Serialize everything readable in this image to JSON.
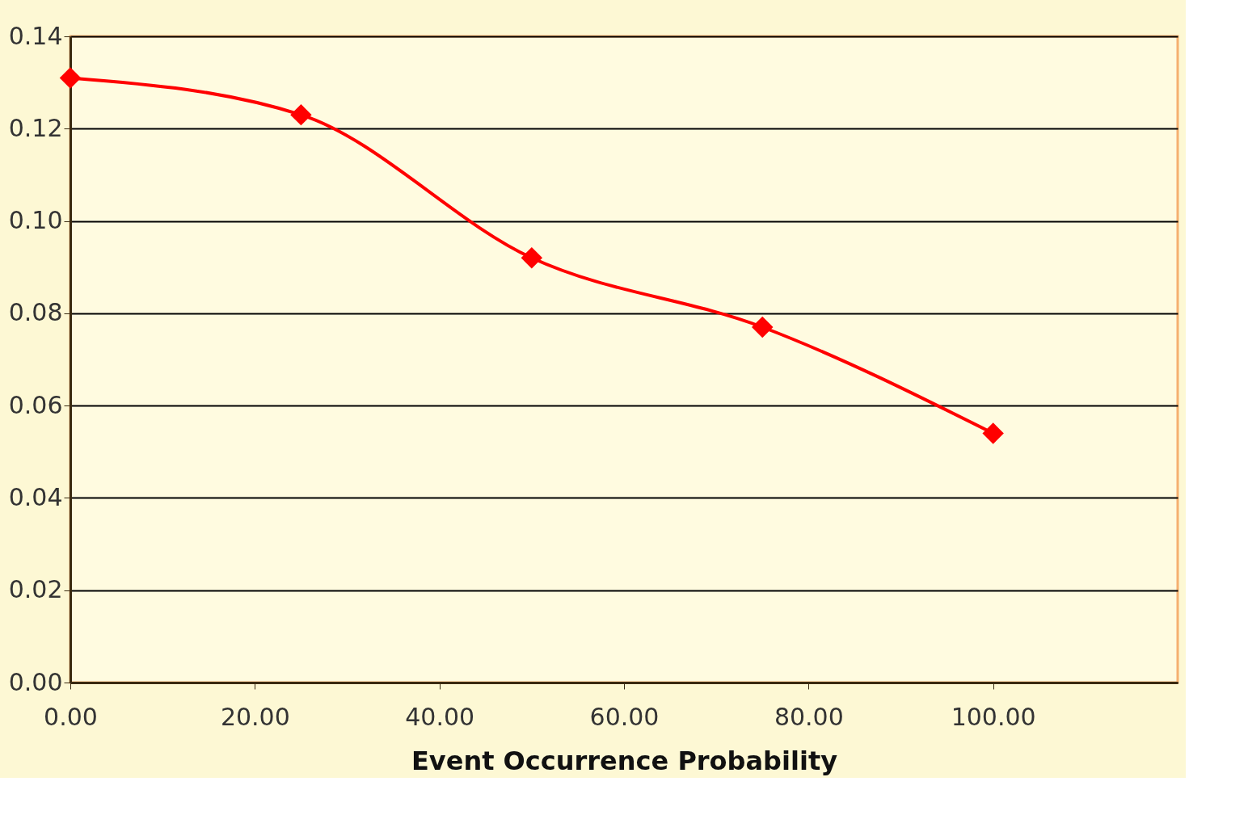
{
  "chart_data": {
    "type": "line",
    "xlabel": "Event Occurrence Probability",
    "x": [
      0,
      25,
      50,
      75,
      100
    ],
    "series": [
      {
        "color": "#ff0000",
        "values": [
          0.131,
          0.123,
          0.092,
          0.077,
          0.054
        ]
      }
    ],
    "xlim": [
      0,
      120
    ],
    "xticks": [
      {
        "value": 0,
        "label": "0.00"
      },
      {
        "value": 20,
        "label": "20.00"
      },
      {
        "value": 40,
        "label": "40.00"
      },
      {
        "value": 60,
        "label": "60.00"
      },
      {
        "value": 80,
        "label": "80.00"
      },
      {
        "value": 100,
        "label": "100.00"
      }
    ],
    "ylim": [
      0,
      0.14
    ],
    "yticks": [
      {
        "value": 0,
        "label": "0.00"
      },
      {
        "value": 0.02,
        "label": "0.02"
      },
      {
        "value": 0.04,
        "label": "0.04"
      },
      {
        "value": 0.06,
        "label": "0.06"
      },
      {
        "value": 0.08,
        "label": "0.08"
      },
      {
        "value": 0.1,
        "label": "0.10"
      },
      {
        "value": 0.12,
        "label": "0.12"
      },
      {
        "value": 0.14,
        "label": "0.14"
      }
    ],
    "grid": "y",
    "marker": "diamond",
    "line_style": "solid"
  }
}
